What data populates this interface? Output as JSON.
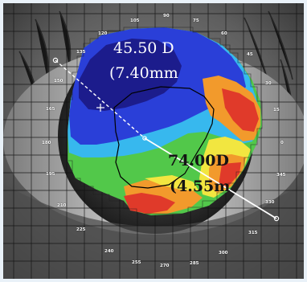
{
  "upper_reading": {
    "power": "45.50 D",
    "radius": "(7.40mm"
  },
  "lower_reading": {
    "power": "74.00D",
    "radius": "(4.55m"
  },
  "degree_scale": {
    "d90": "90",
    "d105": "105",
    "d75": "75",
    "d120": "120",
    "d60": "60",
    "d135": "135",
    "d45": "45",
    "d150": "150",
    "d30": "30",
    "d165": "165",
    "d15": "15",
    "d180": "180",
    "d0": "0",
    "d195": "195",
    "d345": "345",
    "d210": "210",
    "d330": "330",
    "d225": "225",
    "d315": "315",
    "d240": "240",
    "d300": "300",
    "d255": "255",
    "d270": "270",
    "d285": "285"
  },
  "colors": {
    "dark_blue": "#1c1c8c",
    "blue": "#2a3fd8",
    "sky": "#37b8ee",
    "green": "#52c84a",
    "yellow": "#f2e640",
    "orange": "#f29a2c",
    "red": "#e03a2a"
  }
}
